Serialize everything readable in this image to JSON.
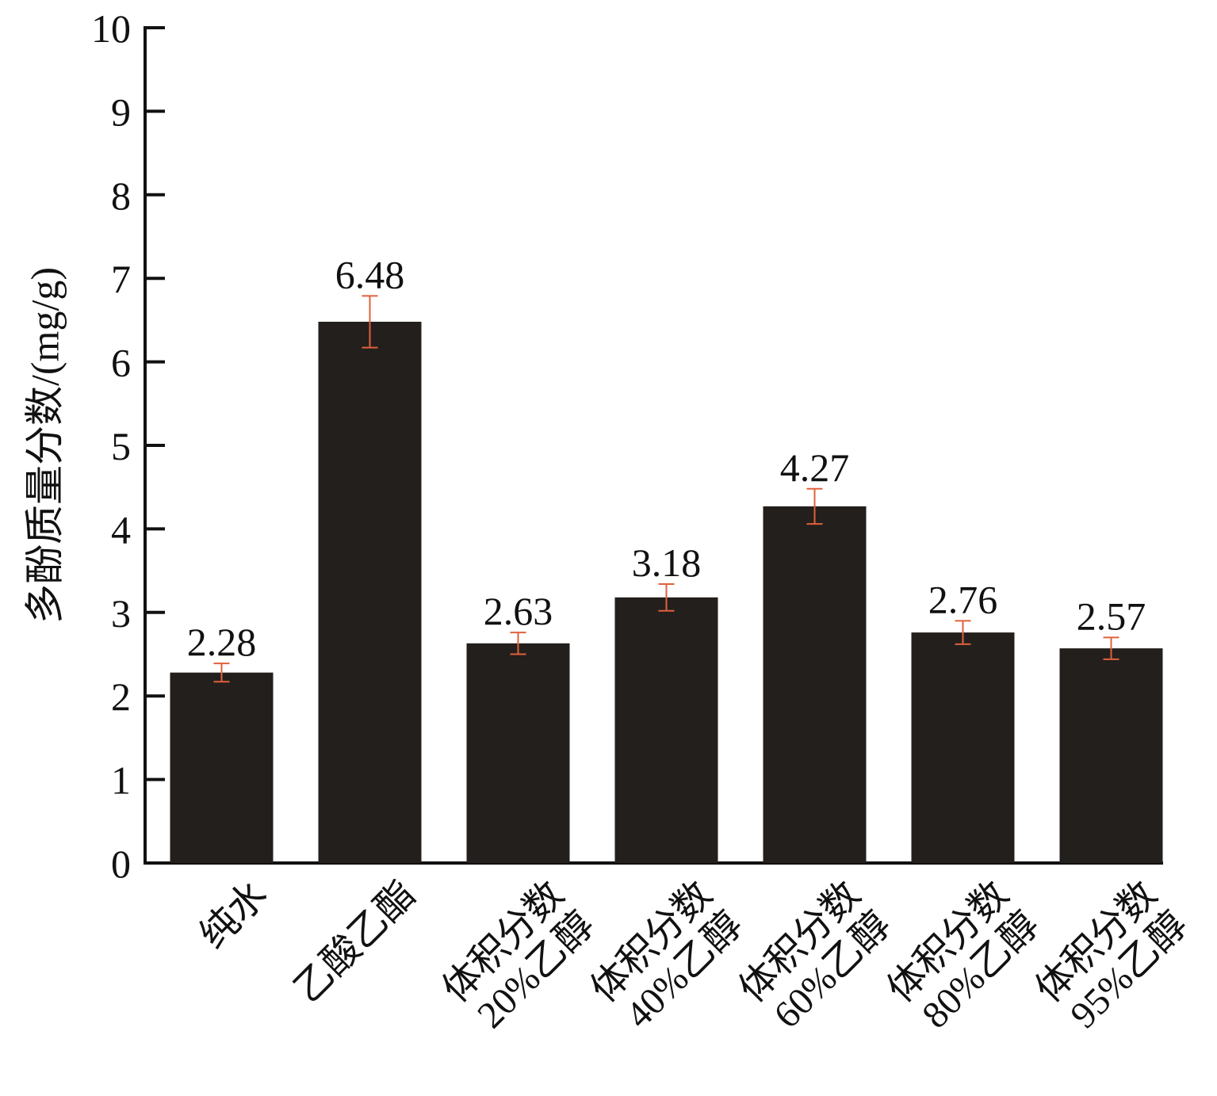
{
  "chart_data": {
    "type": "bar",
    "y_label": "多酚质量分数/(mg/g)",
    "categories": [
      "纯水",
      "乙酸乙酯",
      "体积分数\n20%乙醇",
      "体积分数\n40%乙醇",
      "体积分数\n60%乙醇",
      "体积分数\n80%乙醇",
      "体积分数\n95%乙醇"
    ],
    "values": [
      2.28,
      6.48,
      2.63,
      3.18,
      4.27,
      2.76,
      2.57
    ],
    "errors": [
      0.11,
      0.31,
      0.13,
      0.16,
      0.21,
      0.14,
      0.13
    ],
    "color": "#231f1c",
    "error_color": "#e0603c",
    "ylim": [
      0,
      10
    ],
    "yticks": [
      0,
      1,
      2,
      3,
      4,
      5,
      6,
      7,
      8,
      9,
      10
    ]
  }
}
